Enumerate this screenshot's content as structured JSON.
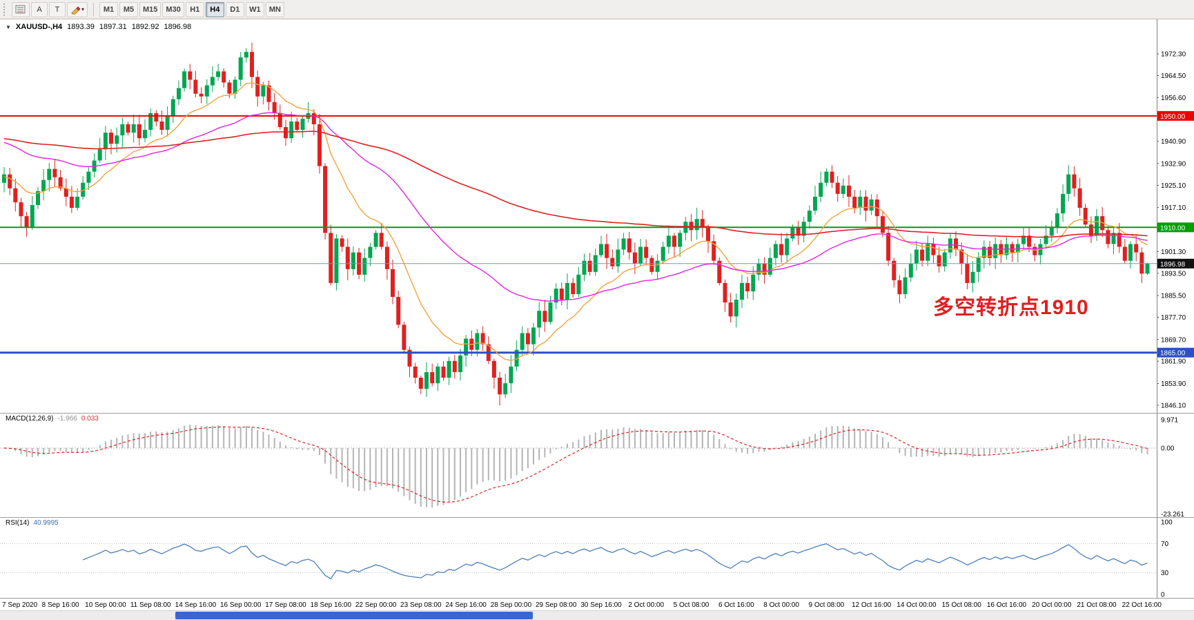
{
  "toolbar": {
    "text_tool_label": "A",
    "label_tool_label": "T",
    "timeframes": [
      "M1",
      "M5",
      "M15",
      "M30",
      "H1",
      "H4",
      "D1",
      "W1",
      "MN"
    ],
    "active_timeframe": "H4"
  },
  "chart": {
    "header": {
      "collapse_icon": "▼",
      "symbol_period": "XAUUSD-,H4",
      "open": "1893.39",
      "high": "1897.31",
      "low": "1892.92",
      "close": "1896.98"
    },
    "annotation": {
      "text": "多空转折点1910",
      "color": "#e01f1f"
    },
    "price_axis": {
      "ticks": [
        "1972.30",
        "1964.50",
        "1956.60",
        "1940.90",
        "1932.90",
        "1925.10",
        "1917.10",
        "1901.30",
        "1893.50",
        "1885.50",
        "1877.70",
        "1869.70",
        "1861.90",
        "1853.90",
        "1846.10"
      ]
    },
    "levels": [
      {
        "label": "1950.00",
        "price": 1950.0,
        "color": "#ee0000",
        "tag_color": "#ee0000",
        "line_width": 2
      },
      {
        "label": "1910.00",
        "price": 1910.0,
        "color": "#00a000",
        "tag_color": "#00a000",
        "line_width": 2
      },
      {
        "label": "1896.98",
        "price": 1896.98,
        "color": "#7f96ac",
        "tag_color": "#111111",
        "line_width": 1
      },
      {
        "label": "1865.00",
        "price": 1865.0,
        "color": "#2d4fc8",
        "tag_color": "#2d4fc8",
        "line_width": 3
      }
    ],
    "date_axis": {
      "labels": [
        "7 Sep 2020",
        "8 Sep 16:00",
        "10 Sep 00:00",
        "11 Sep 08:00",
        "14 Sep 16:00",
        "16 Sep 00:00",
        "17 Sep 08:00",
        "18 Sep 16:00",
        "22 Sep 00:00",
        "23 Sep 08:00",
        "24 Sep 16:00",
        "28 Sep 00:00",
        "29 Sep 08:00",
        "30 Sep 16:00",
        "2 Oct 00:00",
        "5 Oct 08:00",
        "6 Oct 16:00",
        "8 Oct 00:00",
        "9 Oct 08:00",
        "12 Oct 16:00",
        "14 Oct 00:00",
        "15 Oct 08:00",
        "16 Oct 16:00",
        "20 Oct 00:00",
        "21 Oct 08:00",
        "22 Oct 16:00"
      ]
    }
  },
  "indicators": {
    "macd": {
      "label": "MACD(12,26,9)",
      "value_main": "-1.966",
      "value_signal": "0.033",
      "axis": [
        "9.971",
        "0.00",
        "-23.261"
      ],
      "fast": 12,
      "slow": 26,
      "signal": 9
    },
    "rsi": {
      "label": "RSI(14)",
      "value": "40.9995",
      "axis": [
        "100",
        "70",
        "30",
        "0"
      ],
      "period": 14,
      "levels": [
        70,
        30
      ]
    }
  },
  "chart_data": {
    "type": "candlestick",
    "symbol": "XAUUSD-",
    "timeframe": "H4",
    "title": "XAUUSD- H4 candlestick chart with MACD(12,26,9) and RSI(14)",
    "price_range": [
      1846.1,
      1972.3
    ],
    "last_bar": {
      "open": 1893.39,
      "high": 1897.31,
      "low": 1892.92,
      "close": 1896.98
    },
    "horizontal_levels": [
      1950.0,
      1910.0,
      1896.98,
      1865.0
    ],
    "macd_axis_range": [
      -23.261,
      9.971
    ],
    "rsi_axis_range": [
      0,
      100
    ],
    "bars_per_date_label": 8,
    "closes": [
      1929,
      1924,
      1919,
      1914,
      1910,
      1918,
      1923,
      1927,
      1931,
      1928,
      1924,
      1921,
      1917,
      1921,
      1926,
      1930,
      1934,
      1938,
      1944,
      1940,
      1943,
      1947,
      1944,
      1947,
      1942,
      1945,
      1951,
      1948,
      1945,
      1950,
      1956,
      1960,
      1966,
      1963,
      1958,
      1957,
      1961,
      1964,
      1966,
      1962,
      1958,
      1963,
      1971,
      1973,
      1964,
      1957,
      1961,
      1955,
      1951,
      1946,
      1942,
      1948,
      1945,
      1949,
      1951,
      1947,
      1932,
      1908,
      1890,
      1906,
      1903,
      1895,
      1901,
      1893,
      1899,
      1903,
      1908,
      1903,
      1895,
      1885,
      1875,
      1866,
      1860,
      1856,
      1852,
      1858,
      1854,
      1860,
      1856,
      1862,
      1858,
      1864,
      1870,
      1866,
      1872,
      1868,
      1862,
      1856,
      1850,
      1854,
      1860,
      1866,
      1872,
      1868,
      1874,
      1880,
      1876,
      1883,
      1888,
      1884,
      1890,
      1886,
      1893,
      1898,
      1894,
      1900,
      1904,
      1899,
      1896,
      1902,
      1906,
      1901,
      1897,
      1903,
      1899,
      1894,
      1898,
      1903,
      1907,
      1903,
      1908,
      1912,
      1909,
      1913,
      1910,
      1905,
      1898,
      1890,
      1883,
      1878,
      1884,
      1890,
      1887,
      1893,
      1897,
      1893,
      1899,
      1904,
      1900,
      1906,
      1910,
      1907,
      1912,
      1916,
      1921,
      1926,
      1930,
      1926,
      1922,
      1925,
      1921,
      1917,
      1921,
      1916,
      1920,
      1914,
      1908,
      1898,
      1891,
      1886,
      1892,
      1897,
      1902,
      1898,
      1904,
      1900,
      1896,
      1901,
      1906,
      1902,
      1897,
      1890,
      1894,
      1899,
      1903,
      1899,
      1904,
      1900,
      1904,
      1901,
      1904,
      1907,
      1903,
      1900,
      1904,
      1907,
      1910,
      1915,
      1922,
      1929,
      1924,
      1917,
      1911,
      1907,
      1914,
      1909,
      1904,
      1908,
      1903,
      1898,
      1904,
      1901,
      1893.4,
      1896.98
    ],
    "colors": {
      "up": "#00a651",
      "down": "#e02020",
      "ma_fast": "#f2a33c",
      "ma_mid": "#e322e3",
      "ma_slow": "#e02020",
      "rsi": "#4a7ebb",
      "macd_hist": "#b4b4b4",
      "macd_signal": "#e02020",
      "scrollbar_thumb": "#3468cf"
    }
  }
}
